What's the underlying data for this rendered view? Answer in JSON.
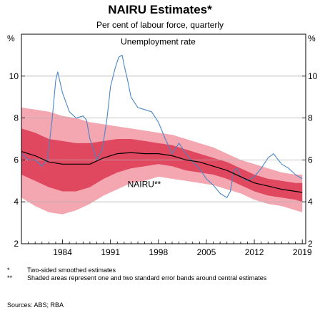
{
  "header": {
    "title": "NAIRU Estimates*",
    "subtitle": "Per cent of labour force, quarterly"
  },
  "footer": {
    "note1_mark": "*",
    "note1": "Two-sided smoothed estimates",
    "note2_mark": "**",
    "note2": "Shaded areas represent one and two standard error bands around central estimates",
    "sources": "Sources:  ABS; RBA"
  },
  "chart_data": {
    "type": "line",
    "title": "NAIRU Estimates*",
    "subtitle": "Per cent of labour force, quarterly",
    "xlim": [
      1978,
      2019.5
    ],
    "ylim": [
      2,
      12
    ],
    "x_ticks": [
      1984,
      1991,
      1998,
      2005,
      2012,
      2019
    ],
    "y_ticks": [
      2,
      4,
      6,
      8,
      10
    ],
    "y_unit_left": "%",
    "y_unit_right": "%",
    "grid": "horizontal",
    "annotations": [
      {
        "text": "Unemployment rate",
        "x": 1992.5,
        "y": 11.5
      },
      {
        "text": "NAIRU**",
        "x": 1993.5,
        "y": 4.7
      }
    ],
    "series": [
      {
        "name": "Unemployment rate",
        "color": "#4a86c5",
        "x": [
          1978.1,
          1979,
          1980,
          1981,
          1981.8,
          1982.5,
          1983.0,
          1983.3,
          1984,
          1985,
          1986,
          1987,
          1987.5,
          1988,
          1989,
          1989.8,
          1990.5,
          1991,
          1991.7,
          1992.2,
          1992.7,
          1993,
          1993.5,
          1994,
          1995,
          1996,
          1997,
          1998,
          1999,
          2000,
          2001,
          2002,
          2003,
          2004,
          2005,
          2006,
          2007,
          2008,
          2008.5,
          2009,
          2009.5,
          2010,
          2011,
          2012,
          2013,
          2014,
          2014.8,
          2015.5,
          2016,
          2017,
          2018,
          2019
        ],
        "y": [
          6.3,
          6.0,
          6.0,
          5.7,
          6.0,
          8.0,
          9.8,
          10.2,
          9.2,
          8.3,
          8.0,
          8.1,
          7.9,
          7.0,
          6.0,
          6.5,
          8.0,
          9.5,
          10.4,
          10.9,
          11.0,
          10.5,
          9.8,
          9.0,
          8.5,
          8.4,
          8.3,
          7.8,
          7.0,
          6.3,
          6.8,
          6.3,
          5.9,
          5.6,
          5.1,
          4.8,
          4.4,
          4.2,
          4.5,
          5.5,
          5.6,
          5.2,
          5.0,
          5.2,
          5.6,
          6.1,
          6.3,
          6.0,
          5.8,
          5.6,
          5.3,
          5.1
        ]
      },
      {
        "name": "NAIRU central estimate",
        "color": "#000000",
        "x": [
          1978,
          1980,
          1982,
          1984,
          1986,
          1988,
          1990,
          1992,
          1994,
          1996,
          1998,
          2000,
          2002,
          2004,
          2006,
          2008,
          2010,
          2012,
          2014,
          2016,
          2018,
          2019
        ],
        "y": [
          6.4,
          6.2,
          5.9,
          5.8,
          5.8,
          5.8,
          6.1,
          6.3,
          6.35,
          6.3,
          6.3,
          6.2,
          6.0,
          5.9,
          5.7,
          5.5,
          5.2,
          4.9,
          4.75,
          4.6,
          4.5,
          4.45
        ]
      },
      {
        "name": "One standard error band",
        "color": "#e0485f",
        "x": [
          1978,
          1980,
          1982,
          1984,
          1986,
          1988,
          1990,
          1992,
          1994,
          1996,
          1998,
          2000,
          2002,
          2004,
          2006,
          2008,
          2010,
          2012,
          2014,
          2016,
          2018,
          2019
        ],
        "upper": [
          7.5,
          7.3,
          7.0,
          6.9,
          6.8,
          6.8,
          6.9,
          7.0,
          7.0,
          6.9,
          6.8,
          6.7,
          6.5,
          6.3,
          6.1,
          5.9,
          5.6,
          5.3,
          5.1,
          5.0,
          4.9,
          4.9
        ],
        "lower": [
          5.3,
          5.0,
          4.7,
          4.5,
          4.5,
          4.7,
          5.1,
          5.4,
          5.6,
          5.7,
          5.8,
          5.7,
          5.5,
          5.4,
          5.3,
          5.1,
          4.8,
          4.5,
          4.3,
          4.2,
          4.1,
          4.0
        ]
      },
      {
        "name": "Two standard error band",
        "color": "#f4a6b1",
        "x": [
          1978,
          1980,
          1982,
          1984,
          1986,
          1988,
          1990,
          1992,
          1994,
          1996,
          1998,
          2000,
          2002,
          2004,
          2006,
          2008,
          2010,
          2012,
          2014,
          2016,
          2018,
          2019
        ],
        "upper": [
          8.5,
          8.4,
          8.3,
          8.1,
          8.0,
          7.8,
          7.7,
          7.6,
          7.5,
          7.4,
          7.3,
          7.2,
          7.0,
          6.8,
          6.6,
          6.3,
          6.0,
          5.8,
          5.6,
          5.4,
          5.3,
          5.3
        ],
        "lower": [
          4.2,
          3.8,
          3.5,
          3.4,
          3.6,
          3.9,
          4.3,
          4.6,
          4.9,
          5.0,
          5.2,
          5.1,
          5.0,
          4.9,
          4.8,
          4.6,
          4.4,
          4.1,
          3.9,
          3.8,
          3.6,
          3.5
        ]
      }
    ]
  }
}
